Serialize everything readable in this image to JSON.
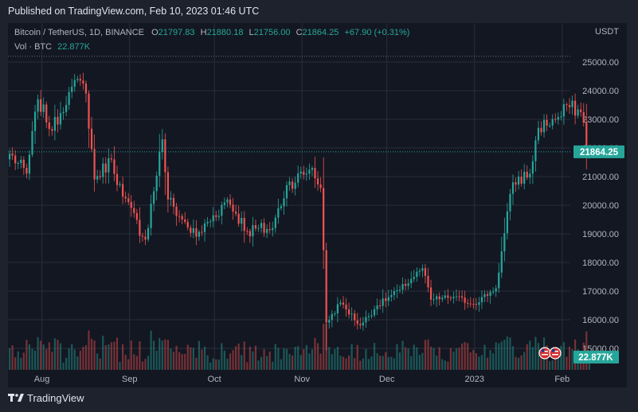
{
  "header": {
    "published": "Published on TradingView.com, Feb 10, 2023 01:46 UTC"
  },
  "legend": {
    "symbol": "Bitcoin / TetherUS, 1D, BINANCE",
    "o_label": "O",
    "o_value": "21797.83",
    "h_label": "H",
    "h_value": "21880.18",
    "l_label": "L",
    "l_value": "21756.00",
    "c_label": "C",
    "c_value": "21864.25",
    "change": "+67.90 (+0.31%)",
    "vol_label": "Vol · BTC",
    "vol_value": "22.877K"
  },
  "footer": {
    "brand": "TradingView"
  },
  "colors": {
    "up": "#26a69a",
    "down": "#ef5350",
    "background": "#131722",
    "grid": "#2a2e39",
    "axis_text": "#b2b5be"
  },
  "chart_data": {
    "type": "candlestick",
    "quote_currency": "USDT",
    "y_ticks": [
      "25000.00",
      "24000.00",
      "23000.00",
      "22000.00",
      "21000.00",
      "20000.00",
      "19000.00",
      "18000.00",
      "17000.00",
      "16000.00",
      "15000.00"
    ],
    "ylim": [
      15000,
      25600
    ],
    "x_ticks": [
      "Aug",
      "Sep",
      "Oct",
      "Nov",
      "Dec",
      "2023",
      "Feb"
    ],
    "last_price_label": "21864.25",
    "volume_label": "22.877K",
    "grid": true,
    "keypoints": [
      {
        "date": "2022-07-20",
        "close": 21800
      },
      {
        "date": "2022-07-26",
        "close": 21100
      },
      {
        "date": "2022-07-30",
        "close": 23700
      },
      {
        "date": "2022-08-04",
        "close": 22600
      },
      {
        "date": "2022-08-10",
        "close": 23950
      },
      {
        "date": "2022-08-14",
        "close": 24350
      },
      {
        "date": "2022-08-16",
        "close": 23900
      },
      {
        "date": "2022-08-19",
        "close": 20900
      },
      {
        "date": "2022-08-25",
        "close": 21600
      },
      {
        "date": "2022-08-29",
        "close": 20300
      },
      {
        "date": "2022-09-06",
        "close": 18800
      },
      {
        "date": "2022-09-12",
        "close": 22300
      },
      {
        "date": "2022-09-14",
        "close": 20200
      },
      {
        "date": "2022-09-19",
        "close": 19500
      },
      {
        "date": "2022-09-24",
        "close": 18900
      },
      {
        "date": "2022-10-05",
        "close": 20200
      },
      {
        "date": "2022-10-12",
        "close": 19100
      },
      {
        "date": "2022-10-21",
        "close": 19200
      },
      {
        "date": "2022-10-26",
        "close": 20700
      },
      {
        "date": "2022-11-04",
        "close": 21300
      },
      {
        "date": "2022-11-07",
        "close": 20600
      },
      {
        "date": "2022-11-09",
        "close": 15900
      },
      {
        "date": "2022-11-14",
        "close": 16600
      },
      {
        "date": "2022-11-21",
        "close": 15800
      },
      {
        "date": "2022-11-27",
        "close": 16500
      },
      {
        "date": "2022-12-05",
        "close": 17050
      },
      {
        "date": "2022-12-13",
        "close": 17800
      },
      {
        "date": "2022-12-16",
        "close": 16700
      },
      {
        "date": "2022-12-24",
        "close": 16800
      },
      {
        "date": "2022-12-31",
        "close": 16550
      },
      {
        "date": "2023-01-08",
        "close": 17100
      },
      {
        "date": "2023-01-14",
        "close": 20800
      },
      {
        "date": "2023-01-20",
        "close": 21100
      },
      {
        "date": "2023-01-23",
        "close": 22700
      },
      {
        "date": "2023-01-31",
        "close": 23100
      },
      {
        "date": "2023-02-02",
        "close": 23500
      },
      {
        "date": "2023-02-07",
        "close": 23250
      },
      {
        "date": "2023-02-08",
        "close": 22900
      },
      {
        "date": "2023-02-09",
        "close": 21800
      },
      {
        "date": "2023-02-10",
        "close": 21864.25
      }
    ]
  }
}
